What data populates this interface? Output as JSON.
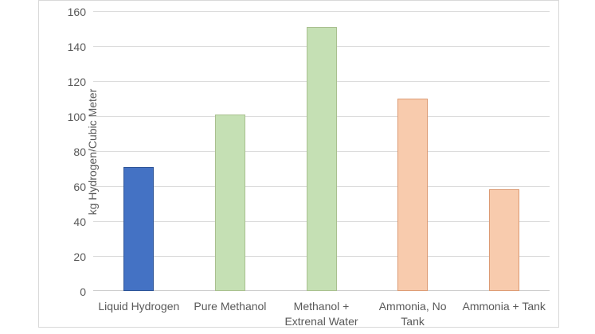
{
  "chart_data": {
    "type": "bar",
    "title": "",
    "categories": [
      "Liquid Hydrogen",
      "Pure Methanol",
      "Methanol + Extrenal Water",
      "Ammonia, No Tank",
      "Ammonia + Tank"
    ],
    "category_lines": [
      [
        "Liquid Hydrogen"
      ],
      [
        "Pure Methanol"
      ],
      [
        "Methanol +",
        "Extrenal Water"
      ],
      [
        "Ammonia, No",
        "Tank"
      ],
      [
        "Ammonia + Tank"
      ]
    ],
    "values": [
      71,
      101,
      151,
      110,
      58
    ],
    "xlabel": "",
    "ylabel": "kg Hydrogen/Cubic Meter",
    "ylim": [
      0,
      160
    ],
    "ytick_step": 20,
    "ytick_labels": [
      "0",
      "20",
      "40",
      "60",
      "80",
      "100",
      "120",
      "140",
      "160"
    ],
    "grid": true,
    "legend": false,
    "bar_colors": [
      {
        "fill": "#4472C4",
        "border": "#2F5597"
      },
      {
        "fill": "#C5E0B4",
        "border": "#A9C08F"
      },
      {
        "fill": "#C5E0B4",
        "border": "#A9C08F"
      },
      {
        "fill": "#F8CBAD",
        "border": "#DC9B74"
      },
      {
        "fill": "#F8CBAD",
        "border": "#DC9B74"
      }
    ]
  },
  "style": {
    "text_color": "#595959",
    "gridline_color": "#DCDCDC",
    "axis_line_color": "#C9C9C9",
    "frame_border_color": "#D9D9D9",
    "background": "#FFFFFF"
  }
}
